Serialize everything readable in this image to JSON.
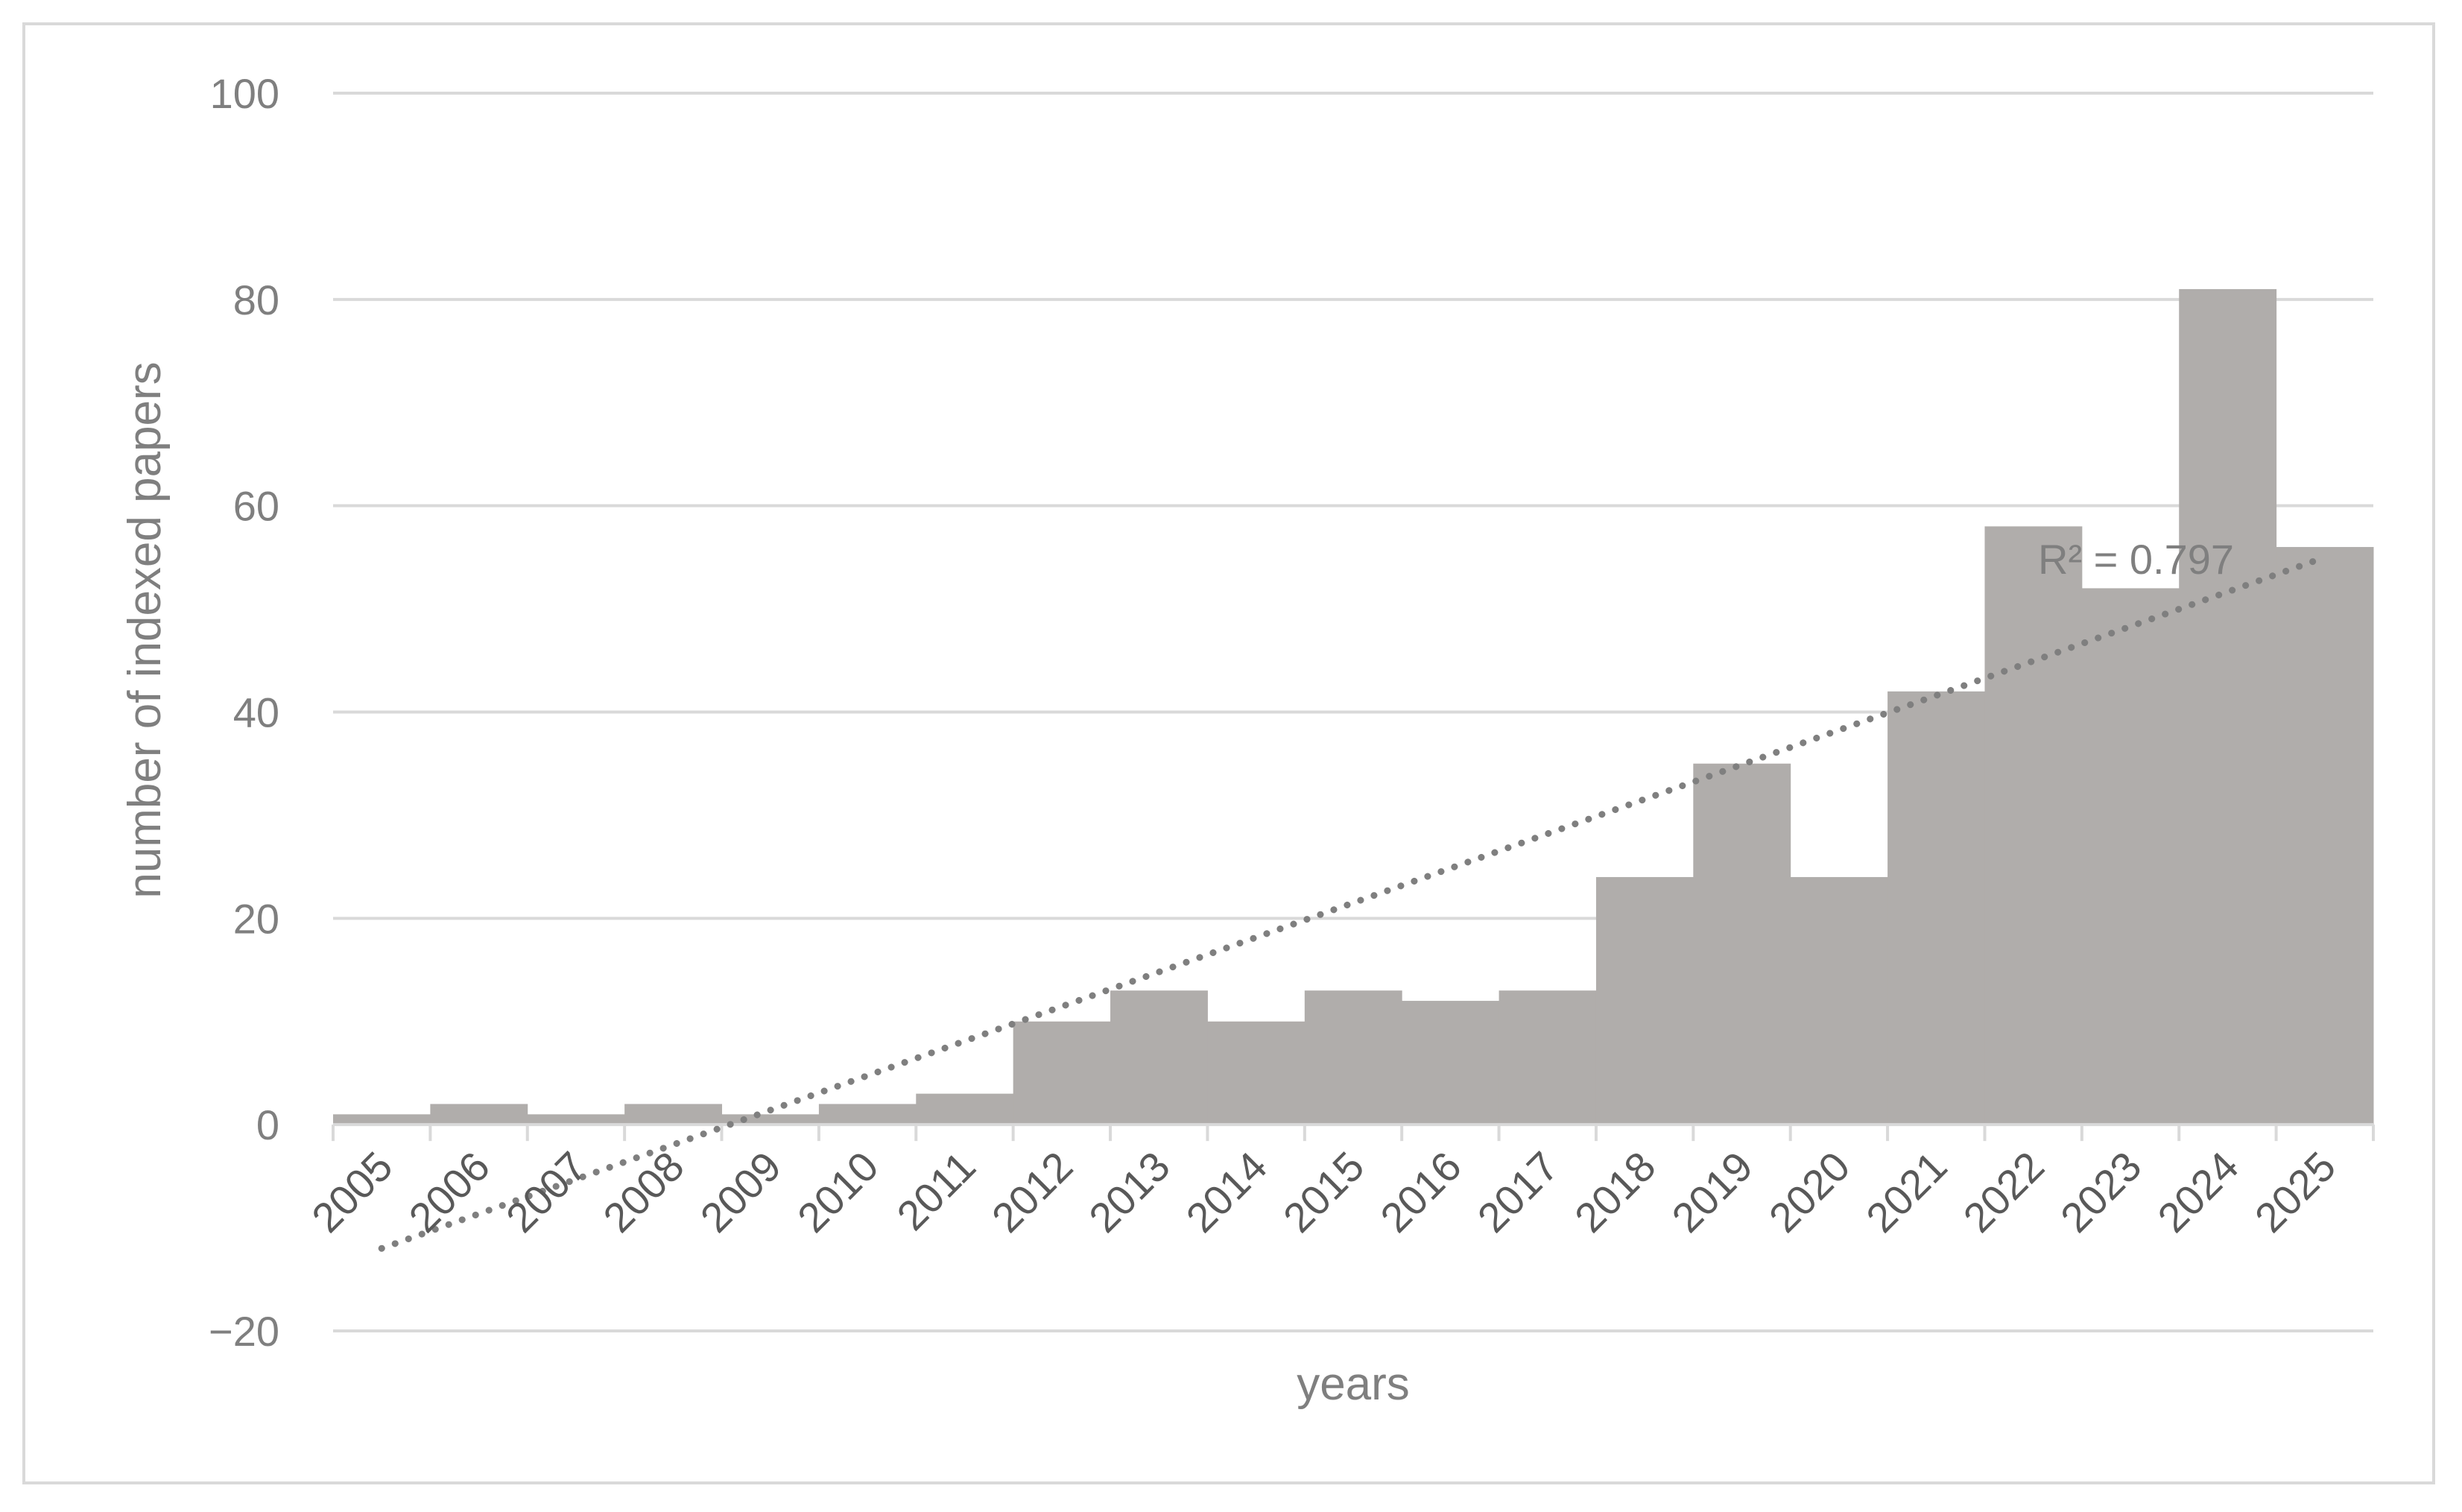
{
  "chart_data": {
    "type": "bar",
    "title": "",
    "xlabel": "years",
    "ylabel": "number of indexed papers",
    "ylim": [
      -20,
      100
    ],
    "yticks": [
      -20,
      0,
      20,
      40,
      60,
      80,
      100
    ],
    "ytick_labels": [
      "−20",
      "0",
      "20",
      "40",
      "60",
      "80",
      "100"
    ],
    "categories": [
      "2005",
      "2006",
      "2007",
      "2008",
      "2009",
      "2010",
      "2011",
      "2012",
      "2013",
      "2014",
      "2015",
      "2016",
      "2017",
      "2018",
      "2019",
      "2020",
      "2021",
      "2022",
      "2023",
      "2024",
      "2025"
    ],
    "values": [
      1,
      2,
      1,
      2,
      1,
      2,
      3,
      10,
      13,
      10,
      13,
      12,
      13,
      24,
      35,
      24,
      42,
      58,
      52,
      81,
      56
    ],
    "trendline": {
      "type": "linear",
      "style": "dotted",
      "start": [
        2005,
        -12
      ],
      "end": [
        2025,
        55
      ],
      "r_squared_label": "R² = 0.797"
    },
    "grid": true,
    "legend": "none",
    "colors": {
      "bar": "#b0adab",
      "gridline": "#d9d9d9",
      "trendline": "#7f7f7f",
      "axis": "#d9d9d9",
      "frame": "#d9d9d9"
    }
  }
}
